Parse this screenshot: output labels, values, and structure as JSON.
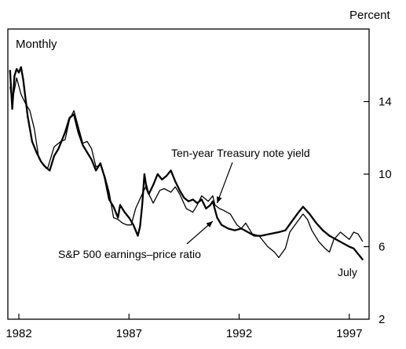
{
  "chart_data": {
    "type": "line",
    "frequency_label": "Monthly",
    "y_unit_label": "Percent",
    "xlim": [
      1981.5,
      1997.9
    ],
    "ylim": [
      2,
      18
    ],
    "x_ticks": [
      {
        "value": 1982,
        "label": "1982"
      },
      {
        "value": 1987,
        "label": "1987"
      },
      {
        "value": 1992,
        "label": "1992"
      },
      {
        "value": 1997,
        "label": "1997"
      }
    ],
    "y_ticks": [
      {
        "value": 2,
        "label": "2"
      },
      {
        "value": 6,
        "label": "6"
      },
      {
        "value": 10,
        "label": "10"
      },
      {
        "value": 14,
        "label": "14"
      }
    ],
    "grid": false,
    "series": [
      {
        "name": "Ten-year Treasury note yield",
        "stroke_width": 1.3,
        "points": [
          [
            1981.6,
            14.8
          ],
          [
            1981.7,
            14.0
          ],
          [
            1981.9,
            15.3
          ],
          [
            1982.1,
            14.4
          ],
          [
            1982.3,
            13.9
          ],
          [
            1982.5,
            13.5
          ],
          [
            1982.7,
            12.5
          ],
          [
            1982.9,
            10.9
          ],
          [
            1983.1,
            10.5
          ],
          [
            1983.3,
            10.3
          ],
          [
            1983.6,
            11.5
          ],
          [
            1983.9,
            11.8
          ],
          [
            1984.1,
            11.9
          ],
          [
            1984.3,
            13.0
          ],
          [
            1984.5,
            13.5
          ],
          [
            1984.7,
            12.6
          ],
          [
            1984.9,
            11.7
          ],
          [
            1985.1,
            11.8
          ],
          [
            1985.3,
            11.4
          ],
          [
            1985.5,
            10.4
          ],
          [
            1985.7,
            10.5
          ],
          [
            1985.9,
            9.9
          ],
          [
            1986.1,
            9.0
          ],
          [
            1986.3,
            7.6
          ],
          [
            1986.5,
            7.5
          ],
          [
            1986.7,
            7.3
          ],
          [
            1986.9,
            7.2
          ],
          [
            1987.1,
            7.2
          ],
          [
            1987.3,
            8.1
          ],
          [
            1987.6,
            8.9
          ],
          [
            1987.8,
            9.4
          ],
          [
            1987.9,
            8.9
          ],
          [
            1988.1,
            8.4
          ],
          [
            1988.4,
            9.1
          ],
          [
            1988.6,
            9.2
          ],
          [
            1988.9,
            9.0
          ],
          [
            1989.1,
            9.3
          ],
          [
            1989.3,
            8.9
          ],
          [
            1989.6,
            8.1
          ],
          [
            1989.9,
            7.9
          ],
          [
            1990.1,
            8.3
          ],
          [
            1990.3,
            8.8
          ],
          [
            1990.6,
            8.5
          ],
          [
            1990.8,
            8.8
          ],
          [
            1990.9,
            8.3
          ],
          [
            1991.1,
            8.1
          ],
          [
            1991.3,
            8.0
          ],
          [
            1991.6,
            7.8
          ],
          [
            1991.9,
            7.2
          ],
          [
            1992.1,
            7.0
          ],
          [
            1992.3,
            7.3
          ],
          [
            1992.6,
            6.7
          ],
          [
            1992.9,
            6.6
          ],
          [
            1993.1,
            6.3
          ],
          [
            1993.3,
            6.0
          ],
          [
            1993.6,
            5.7
          ],
          [
            1993.8,
            5.4
          ],
          [
            1994.1,
            5.9
          ],
          [
            1994.3,
            6.8
          ],
          [
            1994.6,
            7.3
          ],
          [
            1994.9,
            7.8
          ],
          [
            1995.1,
            7.5
          ],
          [
            1995.3,
            6.9
          ],
          [
            1995.6,
            6.3
          ],
          [
            1995.9,
            5.9
          ],
          [
            1996.1,
            5.7
          ],
          [
            1996.3,
            6.4
          ],
          [
            1996.6,
            6.8
          ],
          [
            1996.8,
            6.6
          ],
          [
            1997.0,
            6.4
          ],
          [
            1997.2,
            6.8
          ],
          [
            1997.4,
            6.7
          ],
          [
            1997.6,
            6.3
          ]
        ]
      },
      {
        "name": "S&P 500 earnings–price ratio",
        "stroke_width": 2.3,
        "points": [
          [
            1981.6,
            15.7
          ],
          [
            1981.7,
            13.6
          ],
          [
            1981.8,
            15.4
          ],
          [
            1981.9,
            15.8
          ],
          [
            1982.0,
            15.6
          ],
          [
            1982.1,
            15.9
          ],
          [
            1982.2,
            15.2
          ],
          [
            1982.4,
            13.2
          ],
          [
            1982.6,
            11.8
          ],
          [
            1982.8,
            11.2
          ],
          [
            1983.0,
            10.7
          ],
          [
            1983.2,
            10.4
          ],
          [
            1983.4,
            10.2
          ],
          [
            1983.6,
            11.0
          ],
          [
            1983.8,
            11.4
          ],
          [
            1984.1,
            12.3
          ],
          [
            1984.3,
            13.1
          ],
          [
            1984.5,
            13.3
          ],
          [
            1984.7,
            12.3
          ],
          [
            1984.9,
            11.6
          ],
          [
            1985.1,
            11.2
          ],
          [
            1985.3,
            10.8
          ],
          [
            1985.5,
            10.2
          ],
          [
            1985.7,
            10.6
          ],
          [
            1985.9,
            9.8
          ],
          [
            1986.1,
            8.6
          ],
          [
            1986.3,
            8.2
          ],
          [
            1986.5,
            7.6
          ],
          [
            1986.6,
            8.3
          ],
          [
            1986.8,
            7.9
          ],
          [
            1987.0,
            7.6
          ],
          [
            1987.2,
            7.2
          ],
          [
            1987.4,
            6.6
          ],
          [
            1987.5,
            7.1
          ],
          [
            1987.6,
            8.3
          ],
          [
            1987.7,
            10.0
          ],
          [
            1987.8,
            9.2
          ],
          [
            1987.9,
            8.9
          ],
          [
            1988.1,
            9.4
          ],
          [
            1988.3,
            10.0
          ],
          [
            1988.5,
            9.7
          ],
          [
            1988.7,
            9.9
          ],
          [
            1988.9,
            10.2
          ],
          [
            1989.1,
            9.6
          ],
          [
            1989.3,
            9.1
          ],
          [
            1989.5,
            8.7
          ],
          [
            1989.7,
            8.5
          ],
          [
            1989.9,
            8.6
          ],
          [
            1990.1,
            8.4
          ],
          [
            1990.3,
            8.6
          ],
          [
            1990.5,
            8.1
          ],
          [
            1990.7,
            8.3
          ],
          [
            1990.8,
            8.5
          ],
          [
            1991.0,
            7.6
          ],
          [
            1991.2,
            7.2
          ],
          [
            1991.5,
            7.0
          ],
          [
            1991.8,
            6.9
          ],
          [
            1992.1,
            7.0
          ],
          [
            1992.4,
            6.8
          ],
          [
            1992.7,
            6.6
          ],
          [
            1993.0,
            6.6
          ],
          [
            1993.4,
            6.7
          ],
          [
            1993.8,
            6.8
          ],
          [
            1994.1,
            6.9
          ],
          [
            1994.4,
            7.4
          ],
          [
            1994.7,
            7.9
          ],
          [
            1994.9,
            8.2
          ],
          [
            1995.2,
            7.8
          ],
          [
            1995.5,
            7.3
          ],
          [
            1995.8,
            6.9
          ],
          [
            1996.1,
            6.6
          ],
          [
            1996.4,
            6.4
          ],
          [
            1996.7,
            6.2
          ],
          [
            1997.0,
            6.0
          ],
          [
            1997.2,
            5.9
          ],
          [
            1997.4,
            5.6
          ],
          [
            1997.6,
            5.3
          ]
        ]
      }
    ],
    "annotations": [
      {
        "text": "Ten-year Treasury note yield",
        "arrow_to": [
          1991.0,
          8.4
        ]
      },
      {
        "text": "S&P 500 earnings–price ratio",
        "arrow_to": [
          1990.8,
          7.4
        ]
      },
      {
        "text": "July"
      }
    ]
  }
}
